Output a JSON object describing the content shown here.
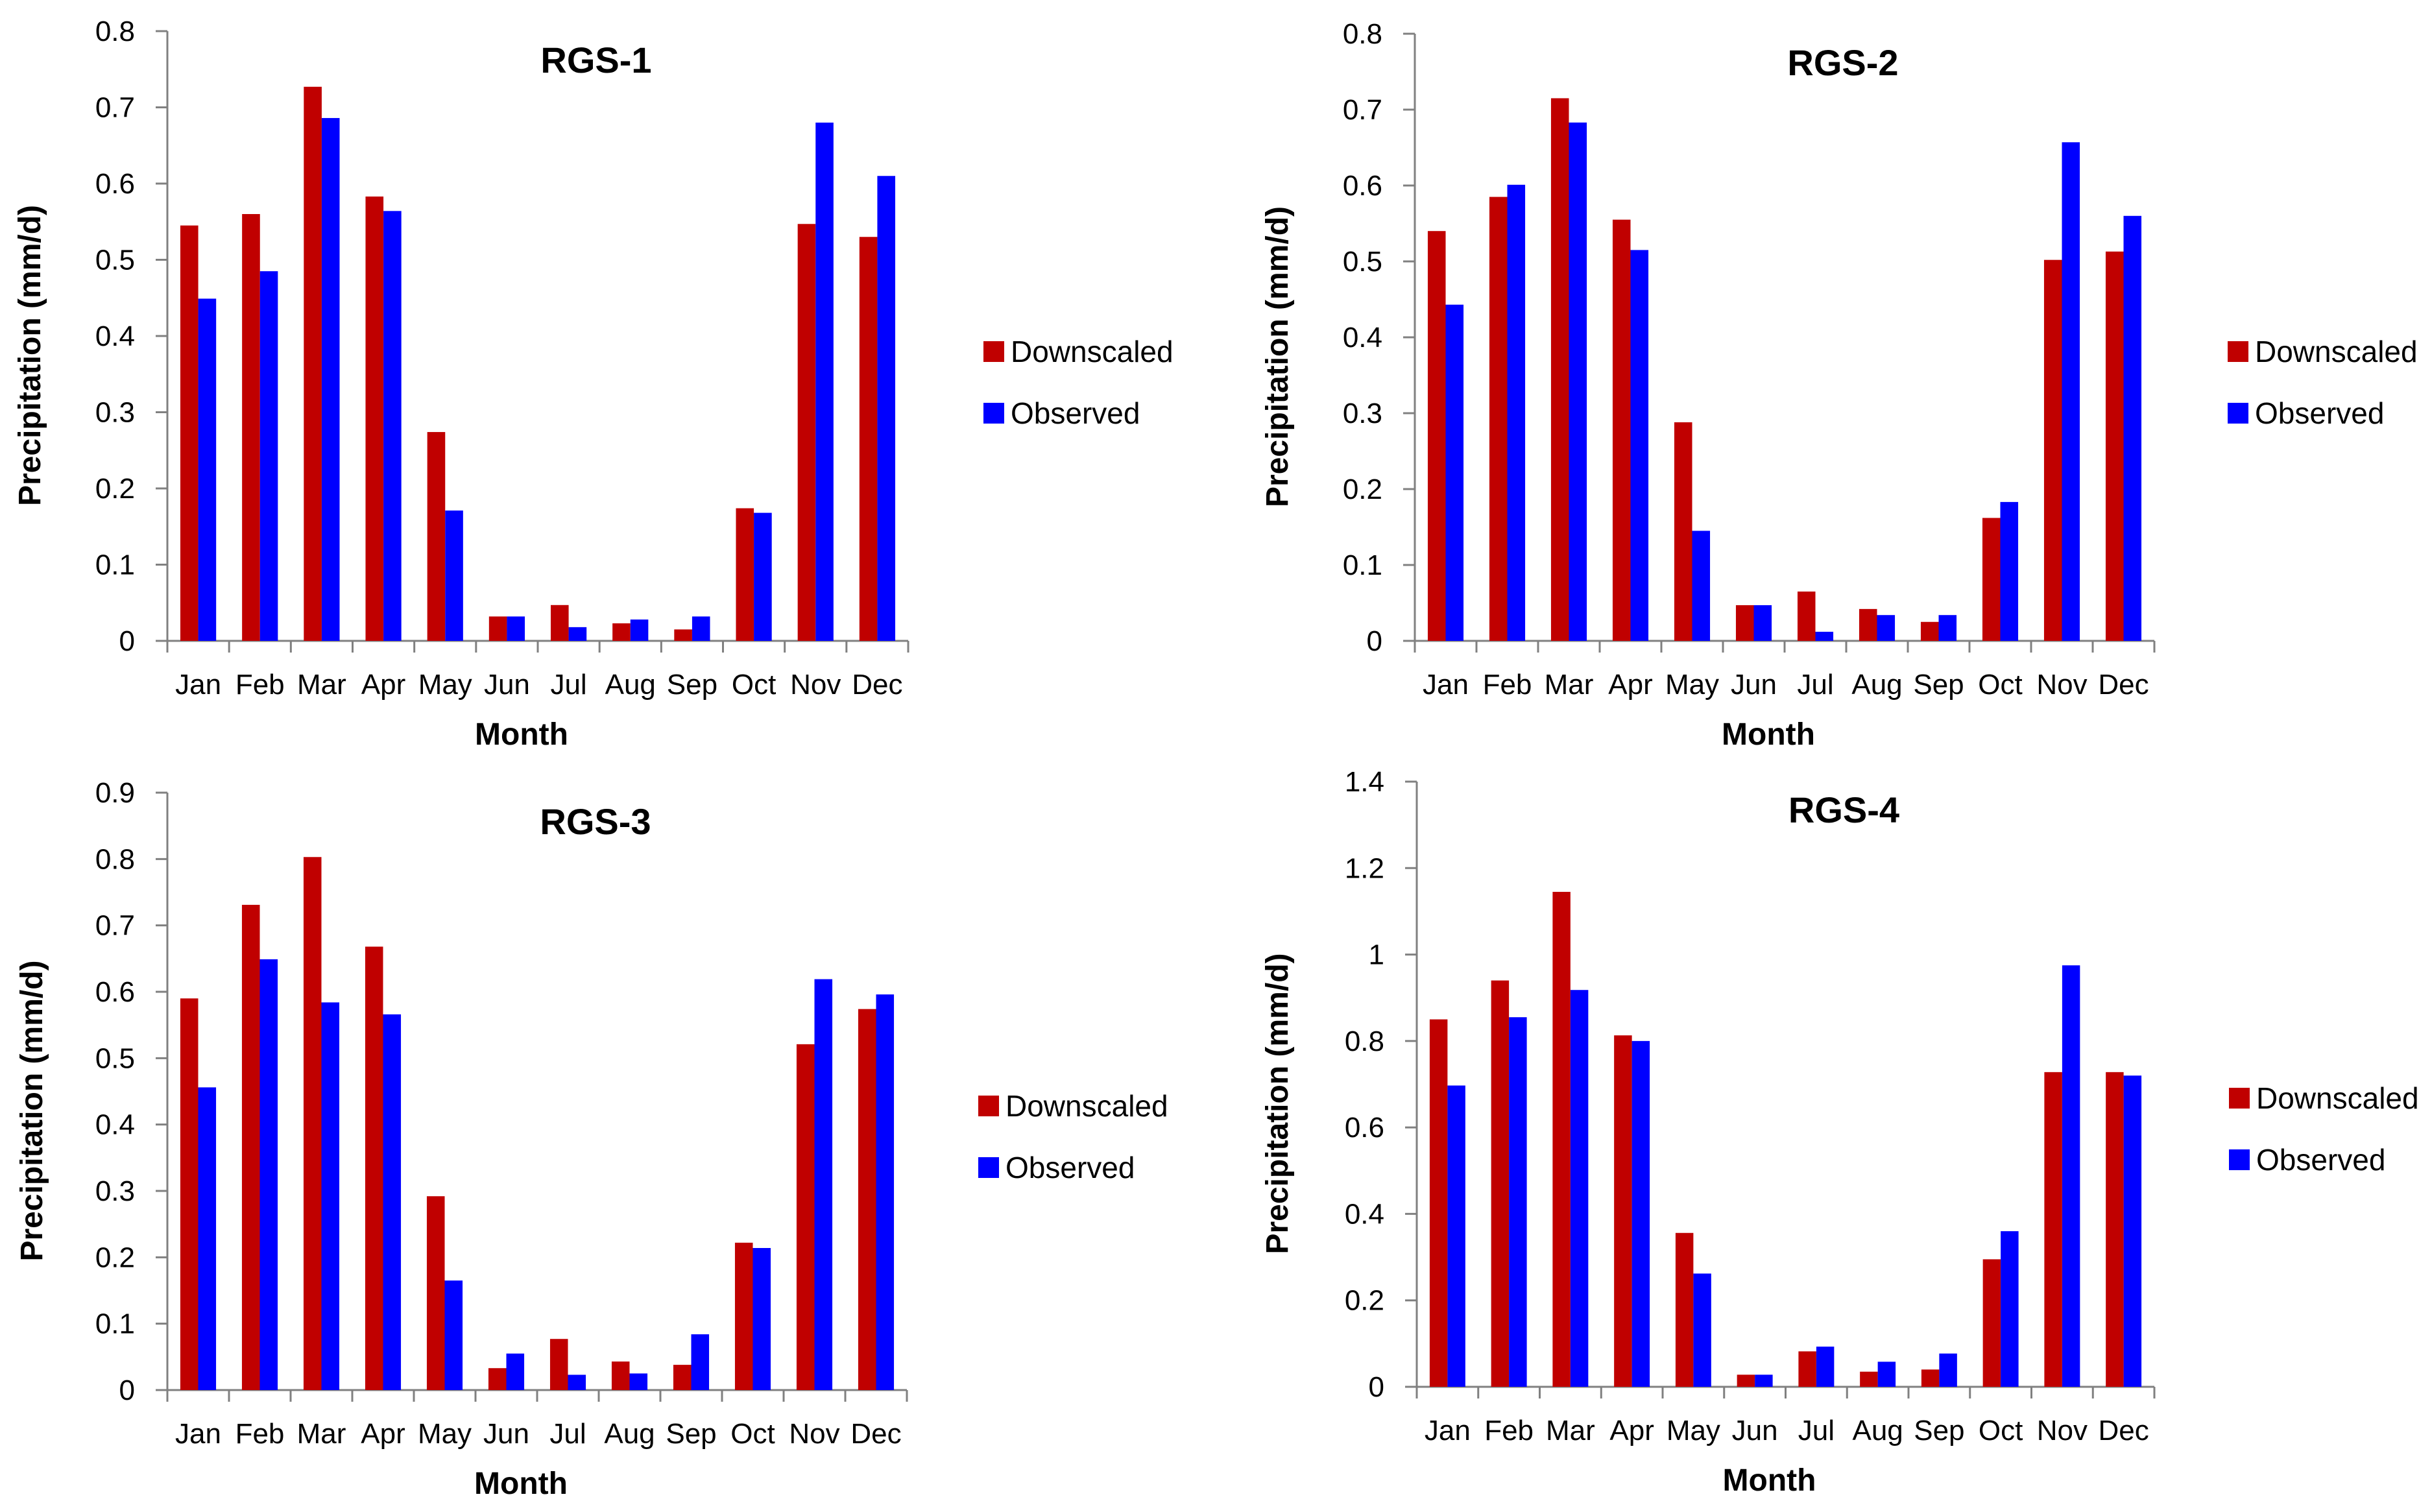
{
  "colors": {
    "downscaled": "#c00000",
    "observed": "#0000ff"
  },
  "chart_data": [
    {
      "type": "bar",
      "title": "RGS-1",
      "xlabel": "Month",
      "ylabel": "Precipitation (mm/d)",
      "ylim": [
        0,
        0.8
      ],
      "yticks": [
        "0",
        "0.1",
        "0.2",
        "0.3",
        "0.4",
        "0.5",
        "0.6",
        "0.7",
        "0.8"
      ],
      "categories": [
        "Jan",
        "Feb",
        "Mar",
        "Apr",
        "May",
        "Jun",
        "Jul",
        "Aug",
        "Sep",
        "Oct",
        "Nov",
        "Dec"
      ],
      "series": [
        {
          "name": "Downscaled",
          "values": [
            0.545,
            0.56,
            0.727,
            0.583,
            0.274,
            0.032,
            0.047,
            0.023,
            0.015,
            0.174,
            0.547,
            0.53
          ]
        },
        {
          "name": "Observed",
          "values": [
            0.449,
            0.485,
            0.686,
            0.564,
            0.171,
            0.032,
            0.018,
            0.028,
            0.032,
            0.168,
            0.68,
            0.61
          ]
        }
      ],
      "legend": "right"
    },
    {
      "type": "bar",
      "title": "RGS-2",
      "xlabel": "Month",
      "ylabel": "Precipitation (mm/d)",
      "ylim": [
        0,
        0.8
      ],
      "yticks": [
        "0",
        "0.1",
        "0.2",
        "0.3",
        "0.4",
        "0.5",
        "0.6",
        "0.7",
        "0.8"
      ],
      "categories": [
        "Jan",
        "Feb",
        "Mar",
        "Apr",
        "May",
        "Jun",
        "Jul",
        "Aug",
        "Sep",
        "Oct",
        "Nov",
        "Dec"
      ],
      "series": [
        {
          "name": "Downscaled",
          "values": [
            0.54,
            0.585,
            0.715,
            0.555,
            0.288,
            0.047,
            0.065,
            0.042,
            0.025,
            0.162,
            0.502,
            0.513
          ]
        },
        {
          "name": "Observed",
          "values": [
            0.443,
            0.601,
            0.683,
            0.515,
            0.145,
            0.047,
            0.012,
            0.034,
            0.034,
            0.183,
            0.657,
            0.56
          ]
        }
      ],
      "legend": "right"
    },
    {
      "type": "bar",
      "title": "RGS-3",
      "xlabel": "Month",
      "ylabel": "Precipitation (mm/d)",
      "ylim": [
        0,
        0.9
      ],
      "yticks": [
        "0",
        "0.1",
        "0.2",
        "0.3",
        "0.4",
        "0.5",
        "0.6",
        "0.7",
        "0.8",
        "0.9"
      ],
      "categories": [
        "Jan",
        "Feb",
        "Mar",
        "Apr",
        "May",
        "Jun",
        "Jul",
        "Aug",
        "Sep",
        "Oct",
        "Nov",
        "Dec"
      ],
      "series": [
        {
          "name": "Downscaled",
          "values": [
            0.59,
            0.731,
            0.803,
            0.668,
            0.292,
            0.033,
            0.077,
            0.043,
            0.038,
            0.222,
            0.521,
            0.574
          ]
        },
        {
          "name": "Observed",
          "values": [
            0.456,
            0.649,
            0.584,
            0.566,
            0.165,
            0.055,
            0.023,
            0.025,
            0.084,
            0.214,
            0.619,
            0.596
          ]
        }
      ],
      "legend": "right"
    },
    {
      "type": "bar",
      "title": "RGS-4",
      "xlabel": "Month",
      "ylabel": "Precipitation (mm/d)",
      "ylim": [
        0,
        1.4
      ],
      "yticks": [
        "0",
        "0.2",
        "0.4",
        "0.6",
        "0.8",
        "1",
        "1.2",
        "1.4"
      ],
      "categories": [
        "Jan",
        "Feb",
        "Mar",
        "Apr",
        "May",
        "Jun",
        "Jul",
        "Aug",
        "Sep",
        "Oct",
        "Nov",
        "Dec"
      ],
      "series": [
        {
          "name": "Downscaled",
          "values": [
            0.85,
            0.94,
            1.145,
            0.813,
            0.356,
            0.028,
            0.082,
            0.035,
            0.04,
            0.295,
            0.728,
            0.728
          ]
        },
        {
          "name": "Observed",
          "values": [
            0.697,
            0.855,
            0.918,
            0.8,
            0.262,
            0.028,
            0.093,
            0.058,
            0.077,
            0.36,
            0.975,
            0.72
          ]
        }
      ],
      "legend": "right"
    }
  ]
}
